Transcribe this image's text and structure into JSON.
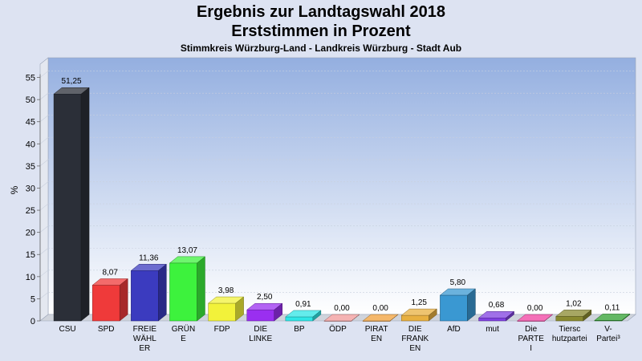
{
  "title": "Ergebnis zur Landtagswahl 2018",
  "subtitle": "Erststimmen in Prozent",
  "subsubtitle": "Stimmkreis Würzburg-Land - Landkreis Würzburg - Stadt Aub",
  "chart_data": {
    "type": "bar",
    "ylabel": "%",
    "ylim": [
      0,
      58
    ],
    "yticks": [
      0,
      5,
      10,
      15,
      20,
      25,
      30,
      35,
      40,
      45,
      50,
      55
    ],
    "grid": true,
    "categories": [
      [
        "CSU"
      ],
      [
        "SPD"
      ],
      [
        "FREIE",
        "WÄHL",
        "ER"
      ],
      [
        "GRÜN",
        "E"
      ],
      [
        "FDP"
      ],
      [
        "DIE",
        "LINKE"
      ],
      [
        "BP"
      ],
      [
        "ÖDP"
      ],
      [
        "PIRAT",
        "EN"
      ],
      [
        "DIE",
        "FRANK",
        "EN"
      ],
      [
        "AfD"
      ],
      [
        "mut"
      ],
      [
        "Die",
        "PARTE",
        "I"
      ],
      [
        "Tiersc",
        "hutzpartei"
      ],
      [
        "V-",
        "Partei³"
      ]
    ],
    "values": [
      51.25,
      8.07,
      11.36,
      13.07,
      3.98,
      2.5,
      0.91,
      0.0,
      0.0,
      1.25,
      5.8,
      0.68,
      0.0,
      1.02,
      0.11
    ],
    "value_labels": [
      "51,25",
      "8,07",
      "11,36",
      "13,07",
      "3,98",
      "2,50",
      "0,91",
      "0,00",
      "0,00",
      "1,25",
      "5,80",
      "0,68",
      "0,00",
      "1,02",
      "0,11"
    ],
    "colors": [
      "#2b2f38",
      "#ef3a3a",
      "#3b3bbf",
      "#3df23d",
      "#f2f23a",
      "#9a2ff0",
      "#2fe6e6",
      "#f29a9a",
      "#f2a03a",
      "#e8b040",
      "#3a98d2",
      "#8040e0",
      "#f040a0",
      "#8a8a30",
      "#30a030"
    ]
  }
}
